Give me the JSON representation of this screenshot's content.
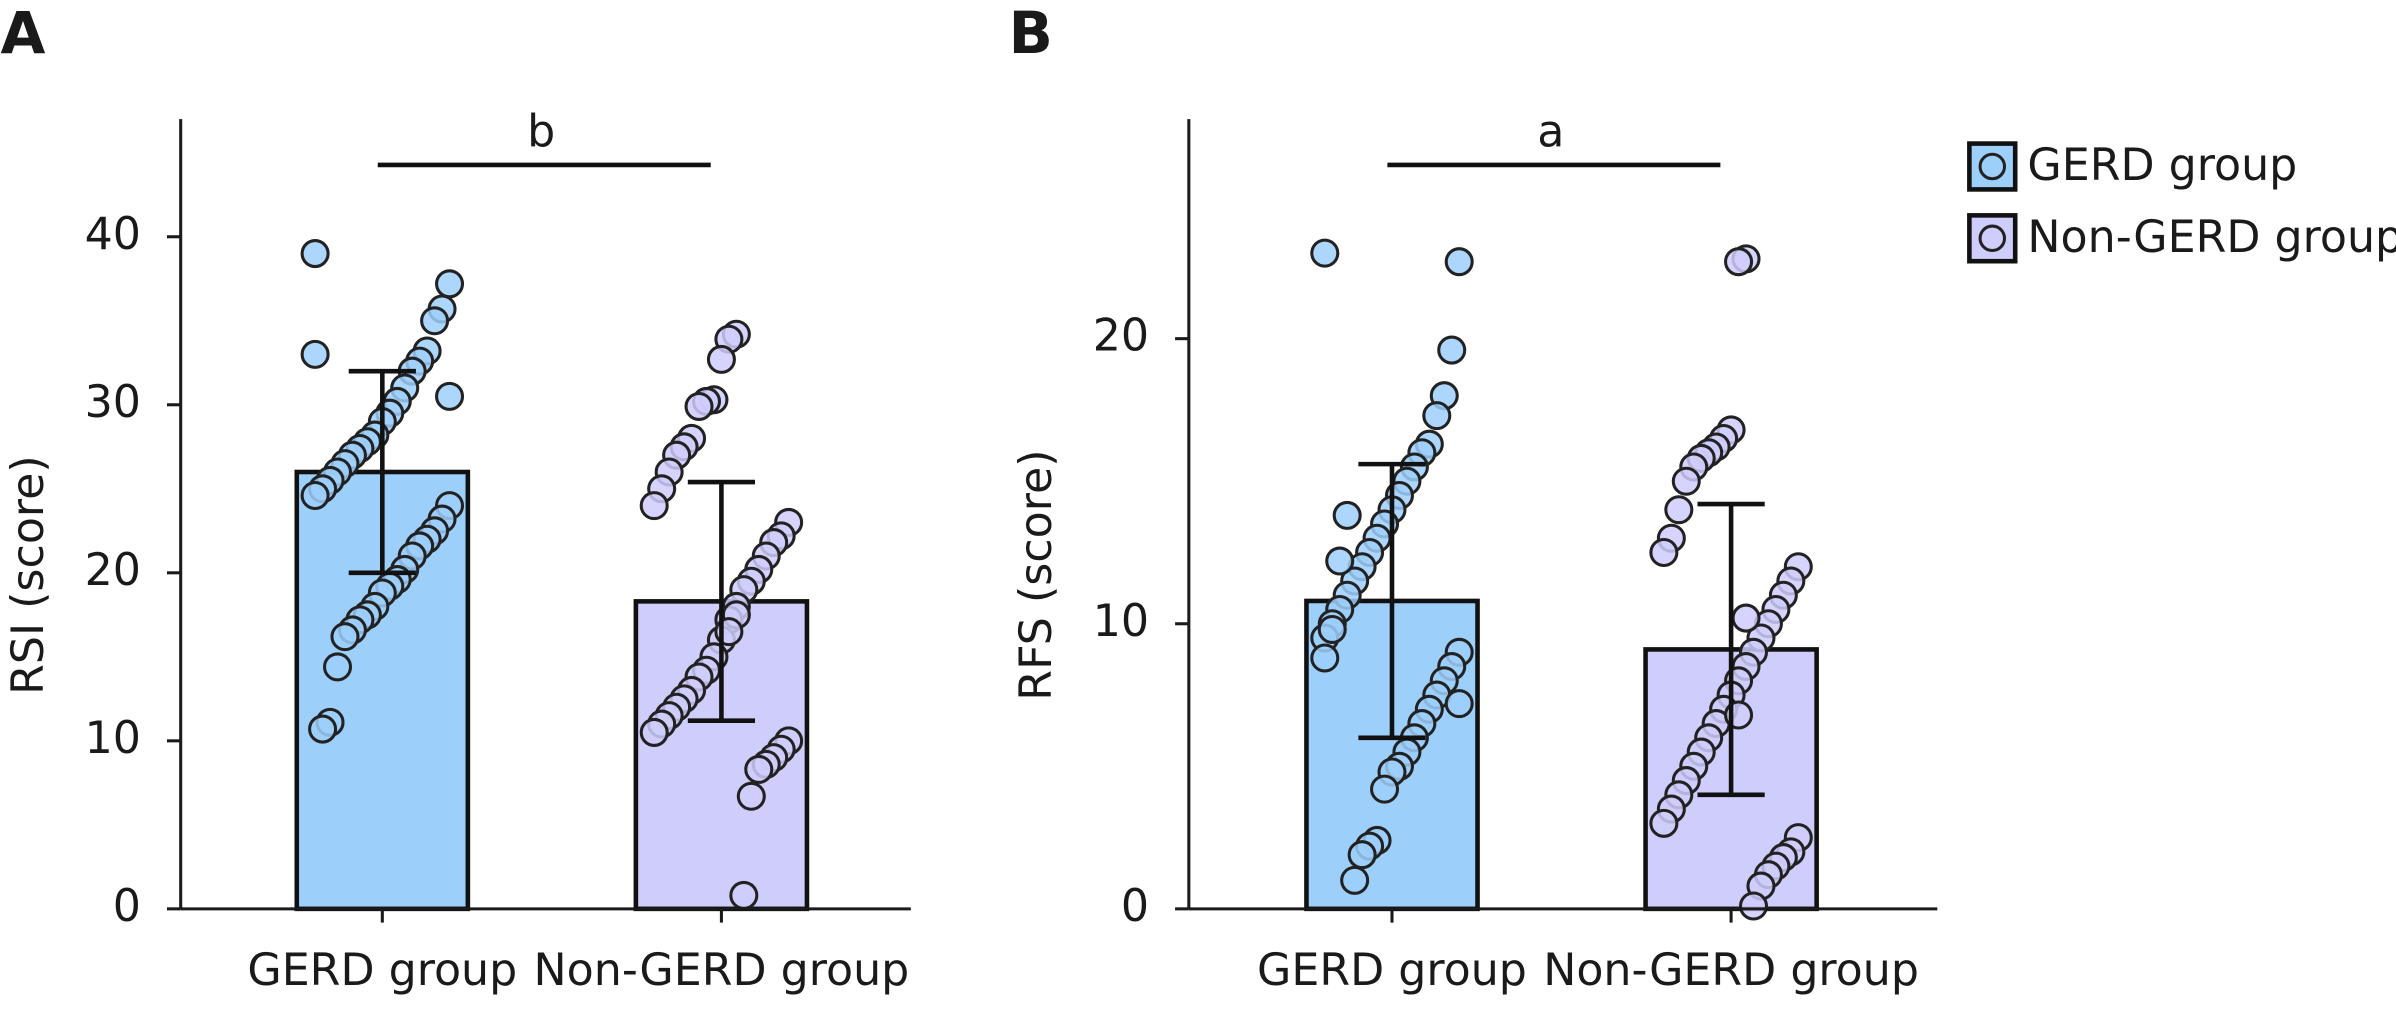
{
  "chart_data": [
    {
      "type": "bar",
      "panel": "A",
      "ylabel": "RSI (score)",
      "categories": [
        "GERD group",
        "Non-GERD group"
      ],
      "values": [
        26.0,
        18.3
      ],
      "errors": [
        6.0,
        7.1
      ],
      "colors": [
        "#9dcffb",
        "#cfcdfc"
      ],
      "points": [
        [
          39,
          37.2,
          35.7,
          35,
          33.2,
          32.6,
          32,
          31,
          30.2,
          29.5,
          29,
          28.2,
          27.8,
          27.4,
          27,
          26.5,
          26,
          25.5,
          25,
          24.6,
          24,
          23.2,
          22.5,
          22,
          21.6,
          21,
          20.2,
          19.6,
          19.2,
          18.8,
          18,
          17.5,
          17.2,
          16.6,
          16.2,
          14.4,
          11.1,
          10.7,
          33,
          30.5
        ],
        [
          34.2,
          33.9,
          32.7,
          30.3,
          30.2,
          29.9,
          28,
          27.5,
          27,
          26,
          25,
          24,
          23,
          22.2,
          21.8,
          21,
          20.2,
          19.5,
          19,
          18,
          17.2,
          16,
          15,
          14.2,
          13.8,
          13,
          12.5,
          12,
          11.5,
          11,
          10.5,
          10,
          9.5,
          9,
          8.6,
          8.3,
          6.7,
          0.8,
          17.5,
          16.5
        ]
      ],
      "ylim": [
        0,
        47
      ],
      "yticks": [
        0,
        10,
        20,
        30,
        40
      ],
      "significance": "b"
    },
    {
      "type": "bar",
      "panel": "B",
      "ylabel": "RFS (score)",
      "categories": [
        "GERD group",
        "Non-GERD group"
      ],
      "values": [
        10.8,
        9.1
      ],
      "errors": [
        4.8,
        5.1
      ],
      "colors": [
        "#9dcffb",
        "#cfcdfc"
      ],
      "points": [
        [
          23,
          22.7,
          19.6,
          18,
          17.3,
          16.3,
          16,
          15.5,
          15,
          14.5,
          14,
          13.5,
          13,
          12.5,
          12,
          11.5,
          11,
          10.5,
          10,
          9.5,
          9,
          8.5,
          8,
          7.5,
          7,
          6.5,
          6,
          5.5,
          5,
          4.8,
          4.2,
          2.4,
          2.2,
          1.9,
          1,
          13.8,
          12.2,
          9.8,
          8.8,
          7.2
        ],
        [
          22.8,
          22.7,
          16.8,
          16.5,
          16.2,
          16,
          15.8,
          15.5,
          15,
          14,
          13,
          12.5,
          12,
          11.5,
          11,
          10.5,
          10,
          9.5,
          9,
          8.5,
          8,
          7.5,
          7,
          6.5,
          6,
          5.5,
          5,
          4.5,
          4,
          3.5,
          3,
          2.5,
          2,
          1.8,
          1.5,
          1.2,
          0.8,
          0.1,
          10.2,
          6.8
        ]
      ],
      "ylim": [
        0,
        27.7
      ],
      "yticks": [
        0,
        10,
        20
      ],
      "significance": "a",
      "legend": "upper right"
    }
  ]
}
